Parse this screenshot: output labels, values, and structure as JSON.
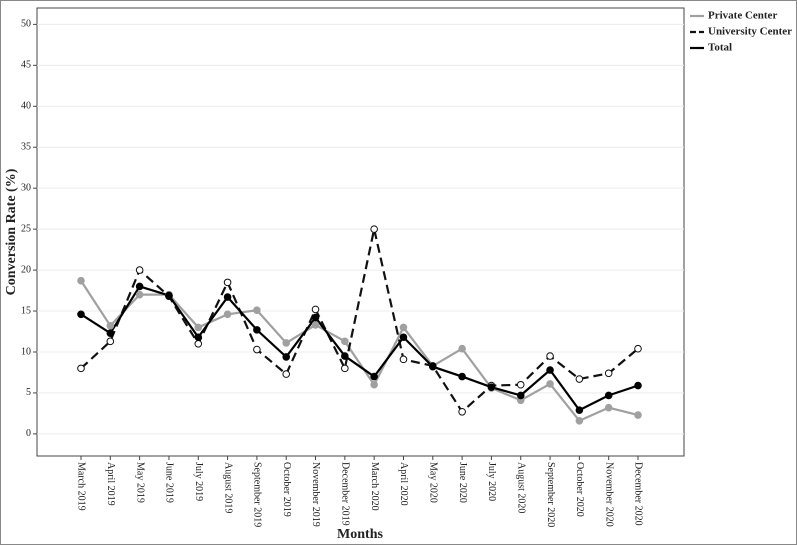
{
  "chart_data": {
    "type": "line",
    "x_label": "Months",
    "y_label": "Conversion Rate (%)",
    "categories": [
      "March 2019",
      "April 2019",
      "May 2019",
      "June 2019",
      "July 2019",
      "August 2019",
      "September 2019",
      "October 2019",
      "November 2019",
      "December 2019",
      "March 2020",
      "April 2020",
      "May 2020",
      "June 2020",
      "July 2020",
      "August 2020",
      "September 2020",
      "October 2020",
      "November 2020",
      "December 2020"
    ],
    "series": [
      {
        "name": "Private Center",
        "color": "#a0a0a0",
        "dashed": false,
        "marker": "filled",
        "values": [
          18.7,
          13.2,
          17.0,
          17.0,
          13.0,
          14.6,
          15.1,
          11.1,
          13.3,
          11.3,
          6.0,
          13.0,
          8.3,
          10.4,
          5.6,
          4.1,
          6.1,
          1.6,
          3.2,
          2.3
        ]
      },
      {
        "name": "University Center",
        "color": "#111111",
        "dashed": true,
        "marker": "open",
        "values": [
          8.0,
          11.3,
          20.0,
          16.8,
          11.0,
          18.5,
          10.3,
          7.3,
          15.2,
          8.0,
          25.0,
          9.1,
          8.3,
          2.7,
          5.9,
          6.0,
          9.5,
          6.7,
          7.4,
          10.4
        ]
      },
      {
        "name": "Total",
        "color": "#000000",
        "dashed": false,
        "marker": "filled",
        "values": [
          14.6,
          12.3,
          18.0,
          16.9,
          11.8,
          16.7,
          12.7,
          9.4,
          14.2,
          9.5,
          7.0,
          11.8,
          8.2,
          7.0,
          5.7,
          4.7,
          7.8,
          2.9,
          4.7,
          5.9
        ]
      }
    ],
    "ylim": [
      -2.7,
      52
    ],
    "yticks": [
      0,
      5,
      10,
      15,
      20,
      25,
      30,
      35,
      40,
      45,
      50
    ],
    "grid": true
  }
}
